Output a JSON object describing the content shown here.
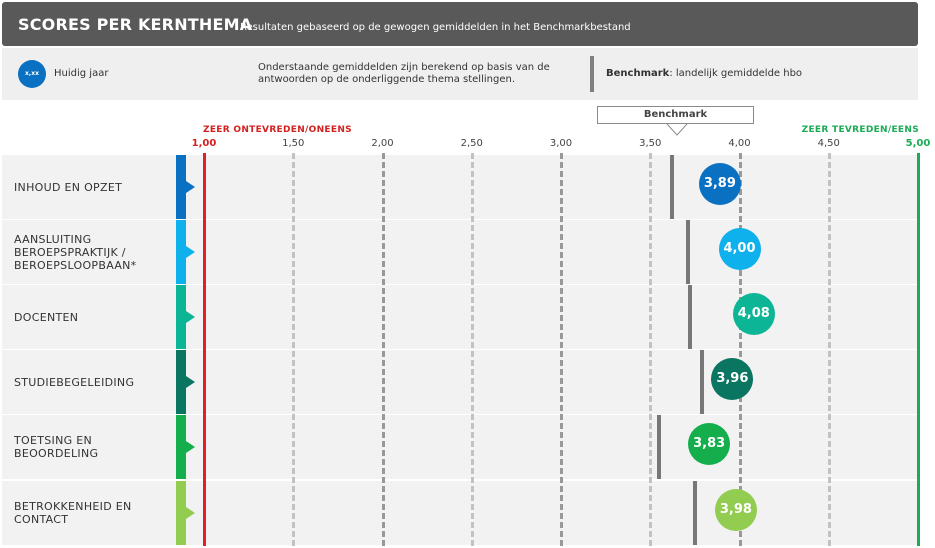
{
  "header": {
    "title": "SCORES PER KERNTHEMA",
    "subtitle": "Resultaten gebaseerd op de gewogen gemiddelden in het Benchmarkbestand"
  },
  "legend": {
    "dot_text": "x,xx",
    "dot_label": "Huidig jaar",
    "dot_color": "#0a70c2",
    "note": "Onderstaande gemiddelden zijn berekend op basis van de antwoorden op de onderliggende thema stellingen.",
    "benchmark_bold": "Benchmark",
    "benchmark_rest": ": landelijk gemiddelde hbo"
  },
  "benchmark_callout": "Benchmark",
  "chart_data": {
    "type": "scatter",
    "xlim": [
      1.0,
      5.0
    ],
    "x_ticks": [
      "1,00",
      "1,50",
      "2,00",
      "2,50",
      "3,00",
      "3,50",
      "4,00",
      "4,50",
      "5,00"
    ],
    "x_tick_values": [
      1.0,
      1.5,
      2.0,
      2.5,
      3.0,
      3.5,
      4.0,
      4.5,
      5.0
    ],
    "label_min": "ZEER ONTEVREDEN/ONEENS",
    "label_max": "ZEER TEVREDEN/EENS",
    "min_color": "#e31e24",
    "max_color": "#1aab55",
    "categories": [
      {
        "label": "INHOUD EN OPZET",
        "score": 3.89,
        "score_text": "3,89",
        "benchmark": 3.62,
        "color": "#0a70c2"
      },
      {
        "label": "AANSLUITING BEROEPSPRAKTIJK / BEROEPSLOOPBAAN*",
        "score": 4.0,
        "score_text": "4,00",
        "benchmark": 3.71,
        "color": "#0fb1ec"
      },
      {
        "label": "DOCENTEN",
        "score": 4.08,
        "score_text": "4,08",
        "benchmark": 3.72,
        "color": "#0cb596"
      },
      {
        "label": "STUDIEBEGELEIDING",
        "score": 3.96,
        "score_text": "3,96",
        "benchmark": 3.79,
        "color": "#0a7561"
      },
      {
        "label": "TOETSING EN BEOORDELING",
        "score": 3.83,
        "score_text": "3,83",
        "benchmark": 3.55,
        "color": "#14ae4c"
      },
      {
        "label": "BETROKKENHEID EN CONTACT",
        "score": 3.98,
        "score_text": "3,98",
        "benchmark": 3.75,
        "color": "#92cc51"
      }
    ]
  }
}
